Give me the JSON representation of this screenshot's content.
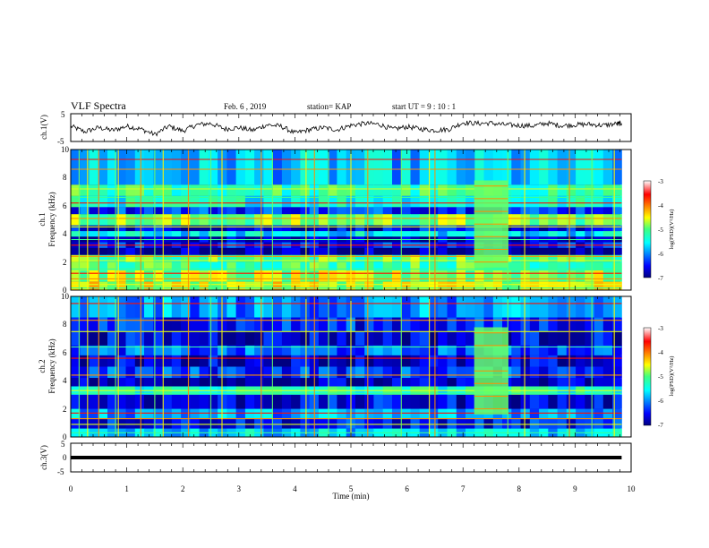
{
  "header": {
    "title": "VLF Spectra",
    "date": "Feb. 6  , 2019",
    "station": "station= KAP",
    "start": "start  UT  =   9 : 10 : 1"
  },
  "chart_data": [
    {
      "type": "line",
      "panel": "ch1-waveform",
      "ylabel": "ch.1(V)",
      "ylim": [
        -5,
        5
      ],
      "yticks": [
        "5",
        "-5"
      ],
      "xlim": [
        0,
        10
      ],
      "x": [
        0,
        0.25,
        0.5,
        0.75,
        1,
        1.25,
        1.5,
        1.75,
        2,
        2.25,
        2.5,
        2.75,
        3,
        3.25,
        3.5,
        3.75,
        4,
        4.25,
        4.5,
        4.75,
        5,
        5.25,
        5.5,
        5.75,
        6,
        6.25,
        6.5,
        6.75,
        7,
        7.25,
        7.5,
        7.75,
        8,
        8.25,
        8.5,
        8.75,
        9,
        9.25,
        9.5,
        9.75,
        9.83
      ],
      "values": [
        0.5,
        -1.5,
        0,
        -1,
        0.5,
        -0.5,
        -2.5,
        0.5,
        -1.2,
        1,
        1.5,
        -0.5,
        0,
        -1,
        1,
        0.5,
        -2,
        -0.8,
        0,
        -0.8,
        0.8,
        1.5,
        1.2,
        -0.6,
        0.3,
        -0.5,
        -1,
        -0.6,
        1.8,
        1.5,
        1.6,
        1,
        0.8,
        0.6,
        1.6,
        0.7,
        1,
        1.2,
        0.8,
        1.4,
        1.5
      ],
      "color": "#000000"
    },
    {
      "type": "heatmap",
      "panel": "ch1-spectrogram",
      "ylabel": "ch.1\nFrequency (kHz)",
      "ylim": [
        0,
        10
      ],
      "yticks": [
        "10",
        "8",
        "6",
        "4",
        "2",
        "0"
      ],
      "xlim": [
        0,
        10
      ],
      "colorbar": {
        "range": [
          -7,
          -3
        ],
        "ticks": [
          "-3",
          "-4",
          "-5",
          "-6",
          "-7"
        ],
        "label": "log(PSD)(V²/Hz)"
      },
      "bands": [
        {
          "y": [
            7.5,
            10
          ],
          "level": -5.8
        },
        {
          "y": [
            6.7,
            7.5
          ],
          "level": -5.2
        },
        {
          "y": [
            5.9,
            6.7
          ],
          "level": -5.4
        },
        {
          "y": [
            5.4,
            5.9
          ],
          "level": -6.3
        },
        {
          "y": [
            4.6,
            5.4
          ],
          "level": -4.9
        },
        {
          "y": [
            4.2,
            4.6
          ],
          "level": -6.6
        },
        {
          "y": [
            3.8,
            4.2
          ],
          "level": -5.6
        },
        {
          "y": [
            3.4,
            3.8
          ],
          "level": -6.8
        },
        {
          "y": [
            3.0,
            3.4
          ],
          "level": -6.4
        },
        {
          "y": [
            2.5,
            3.0
          ],
          "level": -6.9
        },
        {
          "y": [
            2.0,
            2.5
          ],
          "level": -5.0
        },
        {
          "y": [
            1.4,
            2.0
          ],
          "level": -5.1
        },
        {
          "y": [
            0.6,
            1.4
          ],
          "level": -4.8
        },
        {
          "y": [
            0,
            0.6
          ],
          "level": -4.6
        }
      ],
      "lines_kHz": [
        9.3,
        8.6,
        7.2,
        6.6,
        6.2,
        5.1,
        4.5,
        3.6,
        3.2,
        2.4,
        2.1,
        1.5,
        1.2,
        0.8,
        0.4,
        0.15
      ],
      "vertical_spikes_min": [
        0.15,
        0.3,
        0.5,
        0.8,
        0.85,
        1.25,
        1.5,
        1.65,
        2.1,
        2.5,
        2.7,
        3.4,
        3.6,
        4.2,
        4.35,
        4.6,
        5.0,
        5.3,
        5.9,
        6.4,
        6.5,
        7.8,
        8.1,
        8.9,
        9.3,
        9.7
      ],
      "bright_interval_min": [
        7.2,
        7.8
      ]
    },
    {
      "type": "heatmap",
      "panel": "ch2-spectrogram",
      "ylabel": "ch.2\nFrequency (kHz)",
      "ylim": [
        0,
        10
      ],
      "yticks": [
        "10",
        "8",
        "6",
        "4",
        "2",
        "0"
      ],
      "xlim": [
        0,
        10
      ],
      "colorbar": {
        "range": [
          -7,
          -3
        ],
        "ticks": [
          "-3",
          "-4",
          "-5",
          "-6",
          "-7"
        ],
        "label": "log(PSD)(V²/Hz)"
      },
      "bands": [
        {
          "y": [
            8.5,
            10
          ],
          "level": -6.0
        },
        {
          "y": [
            7.5,
            8.5
          ],
          "level": -6.4
        },
        {
          "y": [
            6.5,
            7.5
          ],
          "level": -6.6
        },
        {
          "y": [
            5.8,
            6.5
          ],
          "level": -6.2
        },
        {
          "y": [
            5.0,
            5.8
          ],
          "level": -6.7
        },
        {
          "y": [
            4.2,
            5.0
          ],
          "level": -6.3
        },
        {
          "y": [
            3.6,
            4.2
          ],
          "level": -6.8
        },
        {
          "y": [
            3.0,
            3.6
          ],
          "level": -5.3
        },
        {
          "y": [
            2.0,
            3.0
          ],
          "level": -6.6
        },
        {
          "y": [
            1.3,
            2.0
          ],
          "level": -5.9
        },
        {
          "y": [
            0.6,
            1.3
          ],
          "level": -6.5
        },
        {
          "y": [
            0,
            0.6
          ],
          "level": -5.7
        }
      ],
      "lines_kHz": [
        9.5,
        8.3,
        7.5,
        6.4,
        5.6,
        4.4,
        3.3,
        3.1,
        1.7,
        1.3,
        0.9,
        0.3
      ],
      "vertical_spikes_min": [
        0.15,
        0.3,
        0.5,
        0.8,
        0.85,
        1.25,
        1.5,
        1.65,
        2.1,
        2.5,
        2.7,
        3.4,
        3.6,
        4.2,
        4.35,
        4.6,
        5.0,
        5.3,
        5.9,
        6.4,
        6.5,
        7.8,
        8.1,
        8.9,
        9.3,
        9.7
      ],
      "bright_interval_min": [
        7.2,
        7.8
      ]
    },
    {
      "type": "line",
      "panel": "ch3-waveform",
      "ylabel": "ch.3(V)",
      "ylim": [
        -5,
        5
      ],
      "yticks": [
        "5",
        "0",
        "-5"
      ],
      "xlim": [
        0,
        10
      ],
      "x": [
        0,
        9.83
      ],
      "values": [
        0,
        0
      ],
      "color": "#000000",
      "xlabel": "Time (min)",
      "xticks": [
        "0",
        "1",
        "2",
        "3",
        "4",
        "5",
        "6",
        "7",
        "8",
        "9",
        "10"
      ]
    }
  ]
}
